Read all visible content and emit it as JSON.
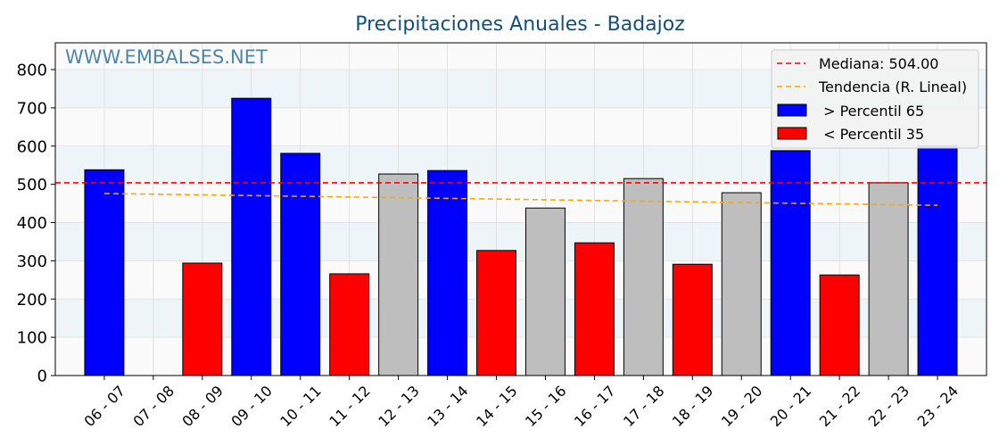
{
  "watermark": "WWW.EMBALSES.NET",
  "chart_data": {
    "type": "bar",
    "title": "Precipitaciones Anuales - Badajoz",
    "categories": [
      "06 - 07",
      "07 - 08",
      "08 - 09",
      "09 - 10",
      "10 - 11",
      "11 - 12",
      "12 - 13",
      "13 - 14",
      "14 - 15",
      "15 - 16",
      "16 - 17",
      "17 - 18",
      "18 - 19",
      "19 - 20",
      "20 - 21",
      "21 - 22",
      "22 - 23",
      "23 - 24"
    ],
    "values": [
      538,
      null,
      294,
      725,
      581,
      266,
      527,
      536,
      327,
      438,
      347,
      515,
      291,
      478,
      588,
      263,
      504,
      601
    ],
    "classes": [
      "above_p65",
      null,
      "below_p35",
      "above_p65",
      "above_p65",
      "below_p35",
      "between",
      "above_p65",
      "below_p35",
      "between",
      "below_p35",
      "between",
      "below_p35",
      "between",
      "above_p65",
      "below_p35",
      "between",
      "above_p65"
    ],
    "colors": {
      "above_p65": "#0000ff",
      "below_p35": "#ff0000",
      "between": "#bebebe",
      "median": "#ff0000",
      "trend": "#ffa500"
    },
    "median": 504.0,
    "trend": {
      "start": 476,
      "end": 445
    },
    "ylim": [
      0,
      870
    ],
    "yticks": [
      0,
      100,
      200,
      300,
      400,
      500,
      600,
      700,
      800
    ],
    "grid": true,
    "legend": {
      "position": "top-right",
      "entries": [
        {
          "label": "Mediana: 504.00",
          "marker": "dashed-line",
          "color": "#ff0000"
        },
        {
          "label": "Tendencia (R. Lineal)",
          "marker": "dashed-line",
          "color": "#ffa500"
        },
        {
          "label": " > Percentil 65",
          "marker": "patch",
          "color": "#0000ff"
        },
        {
          "label": " < Percentil 35",
          "marker": "patch",
          "color": "#ff0000"
        }
      ]
    }
  }
}
